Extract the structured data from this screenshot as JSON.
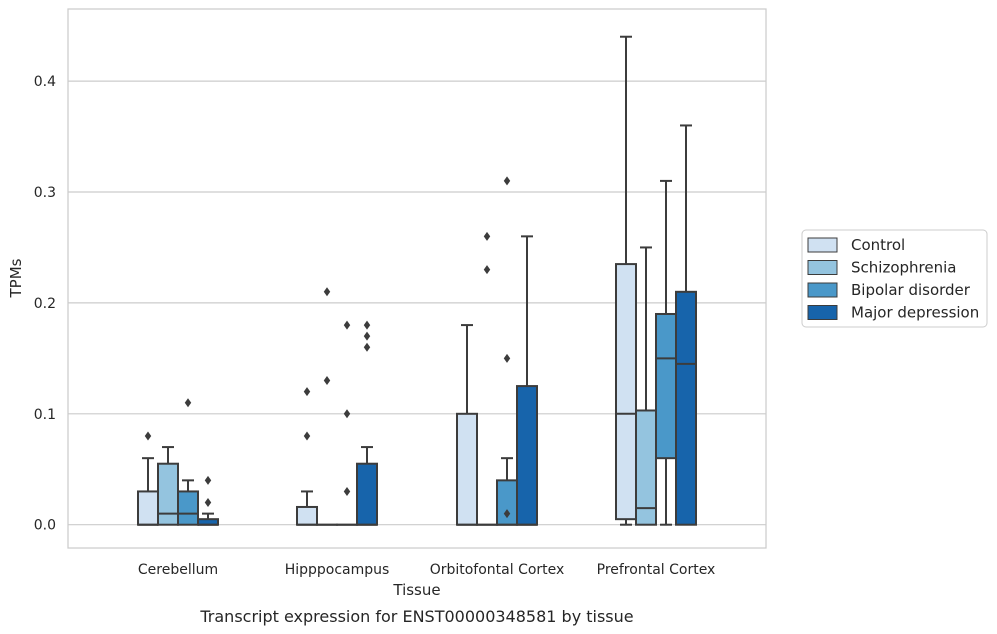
{
  "caption": "Transcript expression for ENST00000348581 by tissue",
  "chart_data": {
    "type": "box",
    "xlabel": "Tissue",
    "ylabel": "TPMs",
    "ylim": [
      -0.021,
      0.465
    ],
    "yticks": [
      0.0,
      0.1,
      0.2,
      0.3,
      0.4
    ],
    "ytick_labels": [
      "0.0",
      "0.1",
      "0.2",
      "0.3",
      "0.4"
    ],
    "grid": "horizontal",
    "legend_position": "right",
    "categories": [
      "Cerebellum",
      "Hipppocampus",
      "Orbitofontal Cortex",
      "Prefrontal Cortex"
    ],
    "series": [
      {
        "name": "Control",
        "color": "#d0e1f2",
        "boxes": [
          {
            "q1": 0.0,
            "median": 0.0,
            "q3": 0.03,
            "whislo": 0.0,
            "whishi": 0.06,
            "fliers": [
              0.08
            ]
          },
          {
            "q1": 0.0,
            "median": 0.0,
            "q3": 0.016,
            "whislo": 0.0,
            "whishi": 0.03,
            "fliers": [
              0.08,
              0.12
            ]
          },
          {
            "q1": 0.0,
            "median": 0.0,
            "q3": 0.1,
            "whislo": 0.0,
            "whishi": 0.18,
            "fliers": []
          },
          {
            "q1": 0.005,
            "median": 0.1,
            "q3": 0.235,
            "whislo": 0.0,
            "whishi": 0.44,
            "fliers": []
          }
        ]
      },
      {
        "name": "Schizophrenia",
        "color": "#94c4df",
        "boxes": [
          {
            "q1": 0.0,
            "median": 0.01,
            "q3": 0.055,
            "whislo": 0.0,
            "whishi": 0.07,
            "fliers": []
          },
          {
            "q1": 0.0,
            "median": 0.0,
            "q3": 0.0,
            "whislo": 0.0,
            "whishi": 0.0,
            "fliers": [
              0.13,
              0.21
            ]
          },
          {
            "q1": 0.0,
            "median": 0.0,
            "q3": 0.0,
            "whislo": 0.0,
            "whishi": 0.0,
            "fliers": [
              0.23,
              0.26
            ]
          },
          {
            "q1": 0.0,
            "median": 0.015,
            "q3": 0.103,
            "whislo": 0.0,
            "whishi": 0.25,
            "fliers": []
          }
        ]
      },
      {
        "name": "Bipolar disorder",
        "color": "#4a98c9",
        "boxes": [
          {
            "q1": 0.0,
            "median": 0.01,
            "q3": 0.03,
            "whislo": 0.0,
            "whishi": 0.04,
            "fliers": [
              0.11
            ]
          },
          {
            "q1": 0.0,
            "median": 0.0,
            "q3": 0.0,
            "whislo": 0.0,
            "whishi": 0.0,
            "fliers": [
              0.03,
              0.1,
              0.18
            ]
          },
          {
            "q1": 0.0,
            "median": 0.0,
            "q3": 0.04,
            "whislo": 0.0,
            "whishi": 0.06,
            "fliers": [
              0.01,
              0.15,
              0.31
            ]
          },
          {
            "q1": 0.06,
            "median": 0.15,
            "q3": 0.19,
            "whislo": 0.0,
            "whishi": 0.31,
            "fliers": []
          }
        ]
      },
      {
        "name": "Major depression",
        "color": "#1764ab",
        "boxes": [
          {
            "q1": 0.0,
            "median": 0.0,
            "q3": 0.005,
            "whislo": 0.0,
            "whishi": 0.01,
            "fliers": [
              0.02,
              0.04
            ]
          },
          {
            "q1": 0.0,
            "median": 0.0,
            "q3": 0.055,
            "whislo": 0.0,
            "whishi": 0.07,
            "fliers": [
              0.16,
              0.17,
              0.18
            ]
          },
          {
            "q1": 0.0,
            "median": 0.0,
            "q3": 0.125,
            "whislo": 0.0,
            "whishi": 0.26,
            "fliers": []
          },
          {
            "q1": 0.0,
            "median": 0.145,
            "q3": 0.21,
            "whislo": 0.0,
            "whishi": 0.36,
            "fliers": []
          }
        ]
      }
    ]
  }
}
